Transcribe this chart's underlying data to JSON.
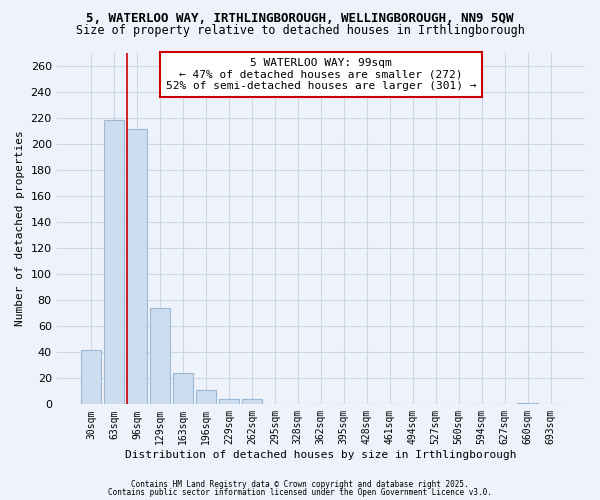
{
  "title_line1": "5, WATERLOO WAY, IRTHLINGBOROUGH, WELLINGBOROUGH, NN9 5QW",
  "title_line2": "Size of property relative to detached houses in Irthlingborough",
  "bar_labels": [
    "30sqm",
    "63sqm",
    "96sqm",
    "129sqm",
    "163sqm",
    "196sqm",
    "229sqm",
    "262sqm",
    "295sqm",
    "328sqm",
    "362sqm",
    "395sqm",
    "428sqm",
    "461sqm",
    "494sqm",
    "527sqm",
    "560sqm",
    "594sqm",
    "627sqm",
    "660sqm",
    "693sqm"
  ],
  "bar_values": [
    42,
    218,
    211,
    74,
    24,
    11,
    4,
    4,
    0,
    0,
    0,
    0,
    0,
    0,
    0,
    0,
    0,
    0,
    0,
    1,
    0
  ],
  "bar_color": "#ccddf0",
  "bar_edge_color": "#9bb8d4",
  "marker_line_color": "#cc0000",
  "marker_line_index": 2,
  "xlabel": "Distribution of detached houses by size in Irthlingborough",
  "ylabel": "Number of detached properties",
  "ylim": [
    0,
    270
  ],
  "yticks": [
    0,
    20,
    40,
    60,
    80,
    100,
    120,
    140,
    160,
    180,
    200,
    220,
    240,
    260
  ],
  "grid_color": "#c8d8e8",
  "annotation_title": "5 WATERLOO WAY: 99sqm",
  "annotation_line2": "← 47% of detached houses are smaller (272)",
  "annotation_line3": "52% of semi-detached houses are larger (301) →",
  "footnote1": "Contains HM Land Registry data © Crown copyright and database right 2025.",
  "footnote2": "Contains public sector information licensed under the Open Government Licence v3.0.",
  "bg_color": "#eef2fa",
  "title_fontsize": 9,
  "subtitle_fontsize": 8.5
}
